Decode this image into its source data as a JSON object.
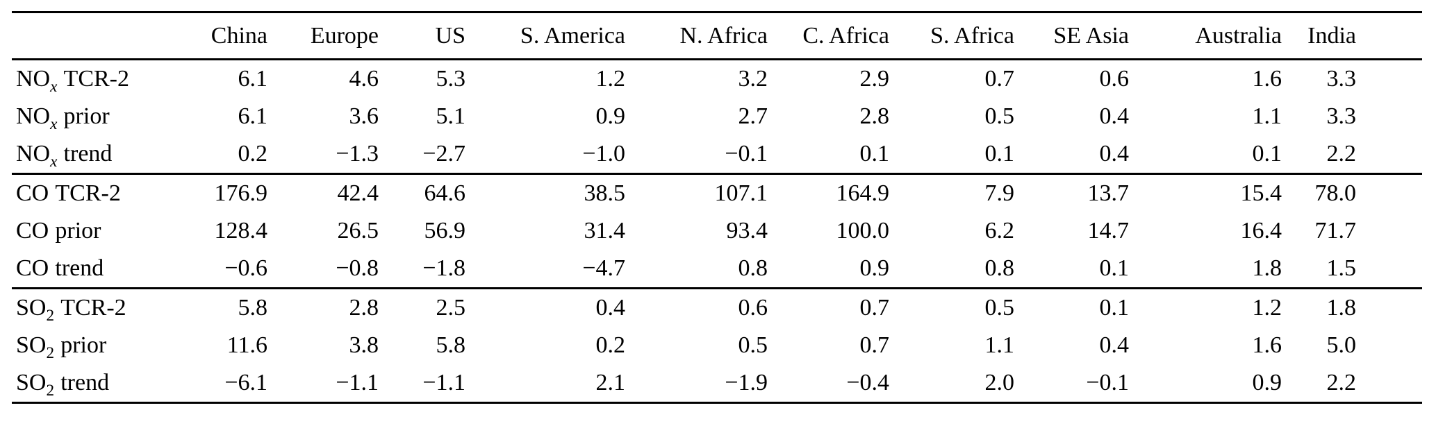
{
  "page": {
    "background_color": "#ffffff",
    "text_color": "#000000",
    "rule_color": "#000000"
  },
  "chart_data": {
    "type": "table",
    "columns": [
      "China",
      "Europe",
      "US",
      "S. America",
      "N. Africa",
      "C. Africa",
      "S. Africa",
      "SE Asia",
      "Australia",
      "India"
    ],
    "row_groups": [
      {
        "rows": [
          {
            "label": {
              "base": "NO",
              "sub": "x",
              "sub_italic": true,
              "rest": "TCR-2"
            },
            "values": [
              "6.1",
              "4.6",
              "5.3",
              "1.2",
              "3.2",
              "2.9",
              "0.7",
              "0.6",
              "1.6",
              "3.3"
            ]
          },
          {
            "label": {
              "base": "NO",
              "sub": "x",
              "sub_italic": true,
              "rest": "prior"
            },
            "values": [
              "6.1",
              "3.6",
              "5.1",
              "0.9",
              "2.7",
              "2.8",
              "0.5",
              "0.4",
              "1.1",
              "3.3"
            ]
          },
          {
            "label": {
              "base": "NO",
              "sub": "x",
              "sub_italic": true,
              "rest": "trend"
            },
            "values": [
              "0.2",
              "−1.3",
              "−2.7",
              "−1.0",
              "−0.1",
              "0.1",
              "0.1",
              "0.4",
              "0.1",
              "2.2"
            ]
          }
        ]
      },
      {
        "rows": [
          {
            "label": {
              "base": "CO",
              "sub": "",
              "sub_italic": false,
              "rest": "TCR-2"
            },
            "values": [
              "176.9",
              "42.4",
              "64.6",
              "38.5",
              "107.1",
              "164.9",
              "7.9",
              "13.7",
              "15.4",
              "78.0"
            ]
          },
          {
            "label": {
              "base": "CO",
              "sub": "",
              "sub_italic": false,
              "rest": "prior"
            },
            "values": [
              "128.4",
              "26.5",
              "56.9",
              "31.4",
              "93.4",
              "100.0",
              "6.2",
              "14.7",
              "16.4",
              "71.7"
            ]
          },
          {
            "label": {
              "base": "CO",
              "sub": "",
              "sub_italic": false,
              "rest": "trend"
            },
            "values": [
              "−0.6",
              "−0.8",
              "−1.8",
              "−4.7",
              "0.8",
              "0.9",
              "0.8",
              "0.1",
              "1.8",
              "1.5"
            ]
          }
        ]
      },
      {
        "rows": [
          {
            "label": {
              "base": "SO",
              "sub": "2",
              "sub_italic": false,
              "rest": "TCR-2"
            },
            "values": [
              "5.8",
              "2.8",
              "2.5",
              "0.4",
              "0.6",
              "0.7",
              "0.5",
              "0.1",
              "1.2",
              "1.8"
            ]
          },
          {
            "label": {
              "base": "SO",
              "sub": "2",
              "sub_italic": false,
              "rest": "prior"
            },
            "values": [
              "11.6",
              "3.8",
              "5.8",
              "0.2",
              "0.5",
              "0.7",
              "1.1",
              "0.4",
              "1.6",
              "5.0"
            ]
          },
          {
            "label": {
              "base": "SO",
              "sub": "2",
              "sub_italic": false,
              "rest": "trend"
            },
            "values": [
              "−6.1",
              "−1.1",
              "−1.1",
              "2.1",
              "−1.9",
              "−0.4",
              "2.0",
              "−0.1",
              "0.9",
              "2.2"
            ]
          }
        ]
      }
    ]
  }
}
